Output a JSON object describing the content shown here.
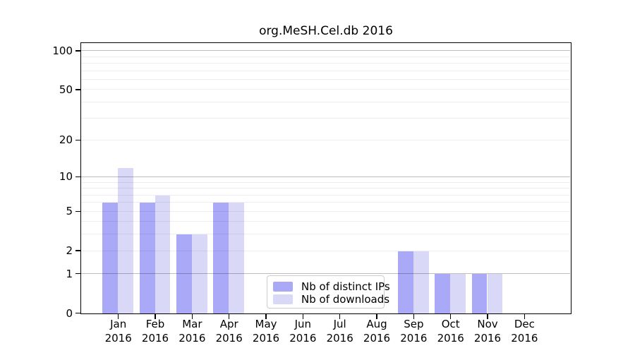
{
  "figure": {
    "background": "#ffffff",
    "axis_color": "#000000"
  },
  "chart_data": {
    "type": "bar",
    "title": "org.MeSH.Cel.db 2016",
    "xlabel": "",
    "ylabel": "",
    "categories": [
      "Jan 2016",
      "Feb 2016",
      "Mar 2016",
      "Apr 2016",
      "May 2016",
      "Jun 2016",
      "Jul 2016",
      "Aug 2016",
      "Sep 2016",
      "Oct 2016",
      "Nov 2016",
      "Dec 2016"
    ],
    "category_months": [
      "Jan",
      "Feb",
      "Mar",
      "Apr",
      "May",
      "Jun",
      "Jul",
      "Aug",
      "Sep",
      "Oct",
      "Nov",
      "Dec"
    ],
    "category_year": "2016",
    "series": [
      {
        "name": "Nb of distinct IPs",
        "color": "#a9a9f7",
        "values": [
          6,
          6,
          3,
          6,
          0,
          0,
          0,
          0,
          2,
          1,
          1,
          0
        ]
      },
      {
        "name": "Nb of downloads",
        "color": "#d9d9f7",
        "values": [
          12,
          7,
          3,
          6,
          0,
          0,
          0,
          0,
          2,
          1,
          1,
          0
        ]
      }
    ],
    "yscale": "log1p",
    "ylim": [
      0,
      116
    ],
    "yticks": [
      0,
      1,
      2,
      5,
      10,
      20,
      50,
      100
    ],
    "grid": {
      "major_values": [
        1,
        10,
        100
      ],
      "minor_values": [
        2,
        3,
        4,
        5,
        6,
        7,
        8,
        9,
        20,
        30,
        40,
        50,
        60,
        70,
        80,
        90
      ],
      "major_color": "#bdbdbd",
      "minor_color": "#ededed"
    },
    "legend_position": "inside-bottom-center"
  }
}
